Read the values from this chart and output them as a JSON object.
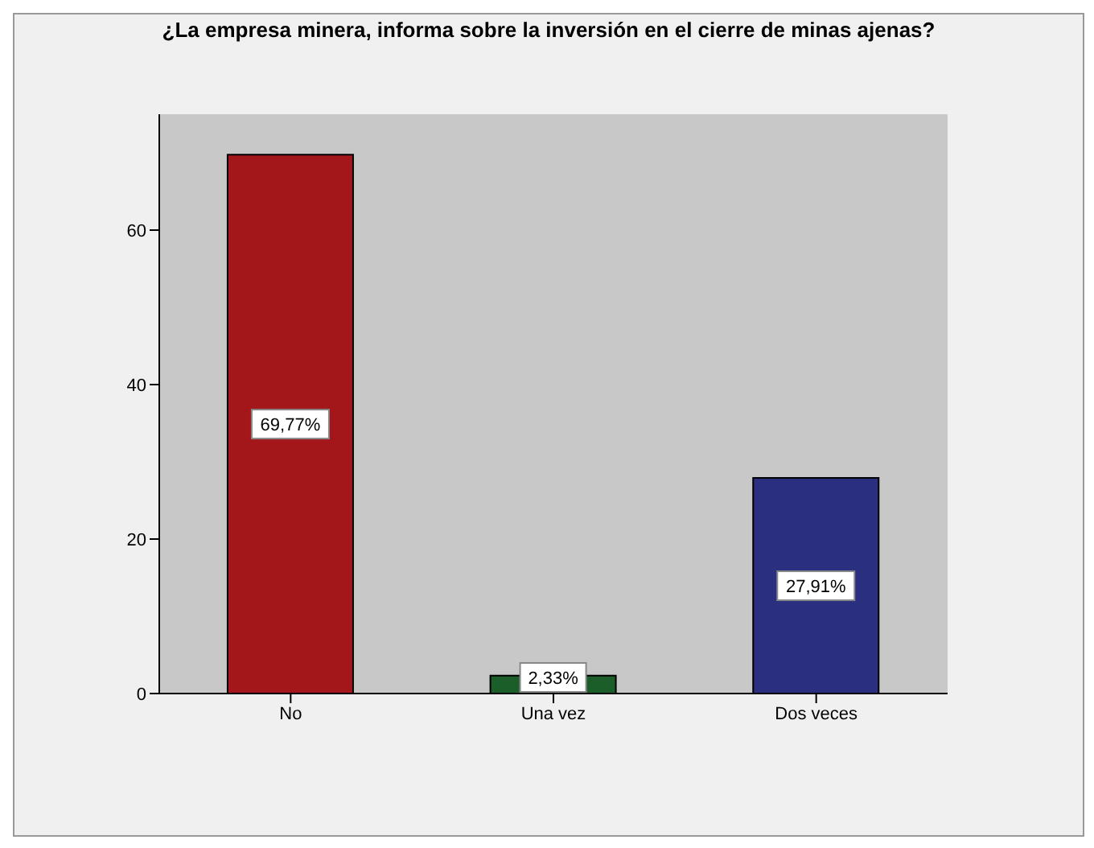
{
  "chart_data": {
    "type": "bar",
    "title": "¿La empresa minera, informa sobre la inversión en el cierre de minas ajenas?",
    "categories": [
      "No",
      "Una vez",
      "Dos veces"
    ],
    "values": [
      69.77,
      2.33,
      27.91
    ],
    "colors": [
      "#a3171b",
      "#1c5e2a",
      "#2a2f80"
    ],
    "value_labels": [
      "69,77%",
      "2,33%",
      "27,91%"
    ],
    "ylim": [
      0,
      75
    ],
    "yticks": [
      0,
      20,
      40,
      60
    ],
    "grid": false
  }
}
